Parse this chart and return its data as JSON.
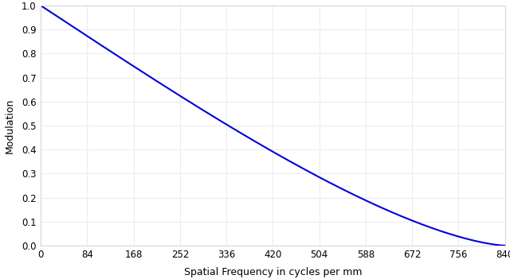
{
  "title": "",
  "xlabel": "Spatial Frequency in cycles per mm",
  "ylabel": "Modulation",
  "xlim": [
    0,
    840
  ],
  "ylim": [
    0.0,
    1.0
  ],
  "xticks": [
    0,
    84,
    168,
    252,
    336,
    420,
    504,
    588,
    672,
    756,
    840
  ],
  "yticks": [
    0.0,
    0.1,
    0.2,
    0.3,
    0.4,
    0.5,
    0.6,
    0.7,
    0.8,
    0.9,
    1.0
  ],
  "cutoff_freq": 840,
  "line_color": "#0000dd",
  "line_width": 1.5,
  "background_color": "#ffffff",
  "grid_color": "#e8e8ee",
  "figsize": [
    6.4,
    3.51
  ],
  "dpi": 100
}
